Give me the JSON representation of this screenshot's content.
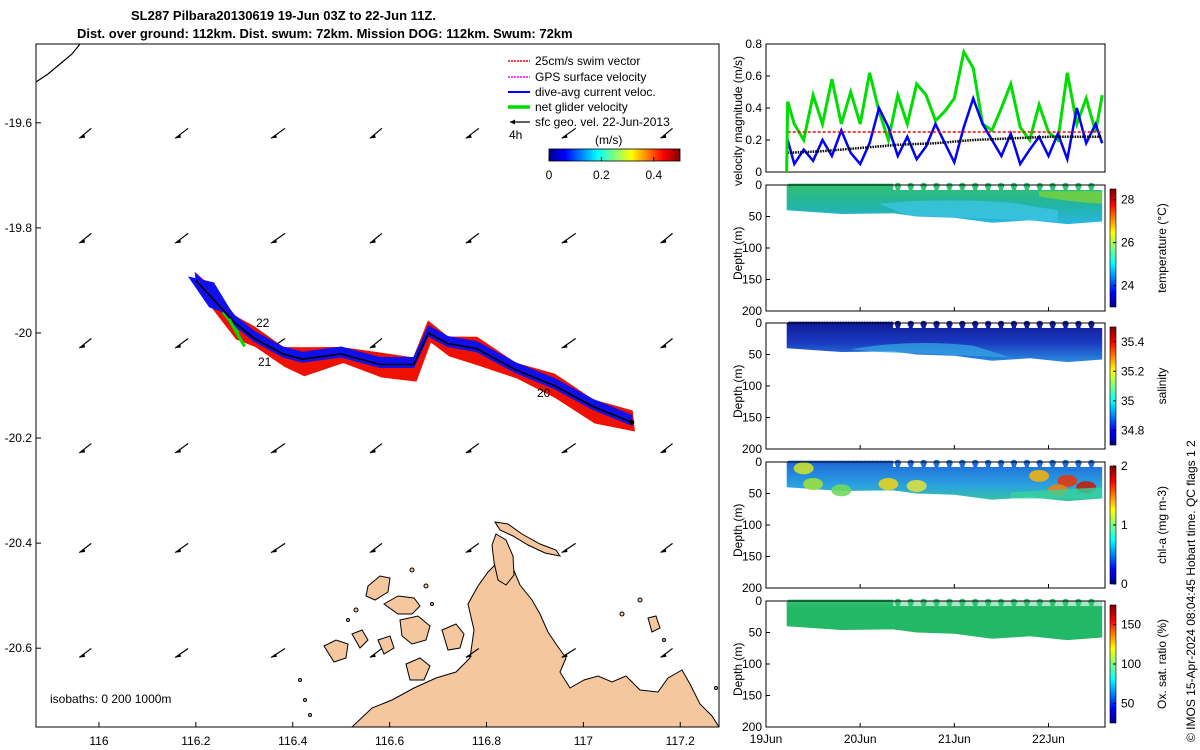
{
  "title": {
    "line1": "SL287 Pilbara20130619 19-Jun 03Z to 22-Jun 11Z.",
    "line2": "Dist. over ground: 112km. Dist. swum: 72km. Mission DOG: 112km. Swum: 72km"
  },
  "credit": "© IMOS 15-Apr-2024 08:04:45 Hobart time. QC flags 1  2",
  "colors": {
    "swim": "#ff0000",
    "gps": "#ff00ff",
    "dive": "#0000ff",
    "net": "#00dd00",
    "sfc": "#000000",
    "land": "#f5c79f",
    "track_red": "#ee1100",
    "track_blue": "#1010ee"
  },
  "chart_data": [
    {
      "type": "line",
      "id": "map",
      "xlim": [
        115.87,
        117.28
      ],
      "ylim": [
        -20.75,
        -19.45
      ],
      "xticks": [
        "116",
        "116.2",
        "116.4",
        "116.6",
        "116.8",
        "117",
        "117.2"
      ],
      "yticks": [
        "-19.6",
        "-19.8",
        "-20",
        "-20.2",
        "-20.4",
        "-20.6"
      ],
      "legend": {
        "placement": "top-right",
        "entries": [
          "25cm/s swim vector",
          "GPS surface velocity",
          "dive-avg current veloc.",
          "net glider velocity",
          "sfc geo. vel. 22-Jun-2013"
        ]
      },
      "colorbar": {
        "label": "(m/s)",
        "ticks": [
          "0",
          "0.2",
          "0.4"
        ],
        "range": [
          0,
          0.5
        ]
      },
      "annotations": [
        "4h",
        "22",
        "21",
        "20"
      ],
      "isobaths": "isobaths: 0   200  1000m",
      "track": [
        [
          116.2,
          -19.9
        ],
        [
          116.24,
          -19.94
        ],
        [
          116.28,
          -19.98
        ],
        [
          116.32,
          -20.01
        ],
        [
          116.38,
          -20.04
        ],
        [
          116.42,
          -20.05
        ],
        [
          116.5,
          -20.04
        ],
        [
          116.58,
          -20.06
        ],
        [
          116.65,
          -20.06
        ],
        [
          116.68,
          -20.0
        ],
        [
          116.72,
          -20.02
        ],
        [
          116.78,
          -20.03
        ],
        [
          116.86,
          -20.07
        ],
        [
          116.94,
          -20.1
        ],
        [
          117.02,
          -20.14
        ],
        [
          117.1,
          -20.17
        ]
      ],
      "sfc_vectors": {
        "lons": [
          115.98,
          116.18,
          116.38,
          116.58,
          116.78,
          116.98,
          117.18
        ],
        "lats": [
          -19.62,
          -19.82,
          -20.02,
          -20.22,
          -20.41,
          -20.61
        ]
      }
    },
    {
      "type": "line",
      "id": "velocity",
      "ylabel": "velocity magnitude (m/s)",
      "xlim": [
        19.0,
        22.6
      ],
      "ylim": [
        0,
        0.8
      ],
      "yticks": [
        "0",
        "0.2",
        "0.4",
        "0.6",
        "0.8"
      ],
      "series": [
        {
          "x": [
            19.23,
            19.3,
            19.4,
            19.5,
            19.6,
            19.7,
            19.8,
            19.9,
            20.0,
            20.1,
            20.2,
            20.3,
            20.4,
            20.5,
            20.6,
            20.7,
            20.8,
            20.9,
            21.0,
            21.1,
            21.2,
            21.3,
            21.4,
            21.5,
            21.6,
            21.7,
            21.8,
            21.9,
            22.0,
            22.1,
            22.2,
            22.3,
            22.4,
            22.5,
            22.57
          ],
          "y": [
            0.44,
            0.3,
            0.2,
            0.48,
            0.3,
            0.58,
            0.3,
            0.5,
            0.3,
            0.62,
            0.38,
            0.2,
            0.48,
            0.3,
            0.55,
            0.48,
            0.32,
            0.38,
            0.46,
            0.75,
            0.65,
            0.3,
            0.26,
            0.4,
            0.55,
            0.28,
            0.2,
            0.42,
            0.25,
            0.2,
            0.62,
            0.3,
            0.46,
            0.25,
            0.48
          ]
        },
        {
          "x": [
            19.23,
            19.3,
            19.4,
            19.5,
            19.6,
            19.7,
            19.8,
            19.9,
            20.0,
            20.1,
            20.2,
            20.3,
            20.4,
            20.5,
            20.6,
            20.7,
            20.8,
            20.9,
            21.0,
            21.1,
            21.2,
            21.3,
            21.4,
            21.5,
            21.6,
            21.7,
            21.8,
            21.9,
            22.0,
            22.1,
            22.2,
            22.3,
            22.4,
            22.5,
            22.57
          ],
          "y": [
            0.2,
            0.05,
            0.14,
            0.07,
            0.2,
            0.1,
            0.26,
            0.12,
            0.05,
            0.18,
            0.4,
            0.28,
            0.1,
            0.22,
            0.08,
            0.16,
            0.3,
            0.18,
            0.06,
            0.28,
            0.46,
            0.3,
            0.2,
            0.1,
            0.24,
            0.05,
            0.14,
            0.22,
            0.1,
            0.24,
            0.08,
            0.4,
            0.18,
            0.3,
            0.18
          ]
        },
        {
          "x": [
            19.23,
            22.57
          ],
          "y": [
            0.25,
            0.25
          ]
        },
        {
          "x": [
            19.23,
            19.6,
            20.0,
            20.4,
            20.8,
            21.2,
            21.6,
            22.0,
            22.57
          ],
          "y": [
            0.12,
            0.13,
            0.15,
            0.17,
            0.18,
            0.2,
            0.21,
            0.22,
            0.22
          ]
        }
      ]
    },
    {
      "type": "heatmap",
      "id": "sections",
      "xlim": [
        19.0,
        22.6
      ],
      "ylim": [
        200,
        0
      ],
      "yticks": [
        "0",
        "50",
        "100",
        "150",
        "200"
      ],
      "ylabel": "Depth (m)",
      "xticks": [
        "19Jun",
        "20Jun",
        "21Jun",
        "22Jun"
      ],
      "panels": [
        {
          "name": "temperature",
          "colorbar_label": "temperature (°C)",
          "cticks": [
            "24",
            "26",
            "28"
          ],
          "crange": [
            23,
            28.5
          ]
        },
        {
          "name": "salinity",
          "colorbar_label": "salinity",
          "cticks": [
            "34.8",
            "35",
            "35.2",
            "35.4"
          ],
          "crange": [
            34.7,
            35.5
          ]
        },
        {
          "name": "chl-a",
          "colorbar_label": "chl-a (mg m-3)",
          "cticks": [
            "0",
            "1",
            "2"
          ],
          "crange": [
            0,
            2
          ]
        },
        {
          "name": "oxygen",
          "colorbar_label": "Ox. sat. ratio (%)",
          "cticks": [
            "50",
            "100",
            "150"
          ],
          "crange": [
            25,
            175
          ]
        }
      ]
    }
  ]
}
